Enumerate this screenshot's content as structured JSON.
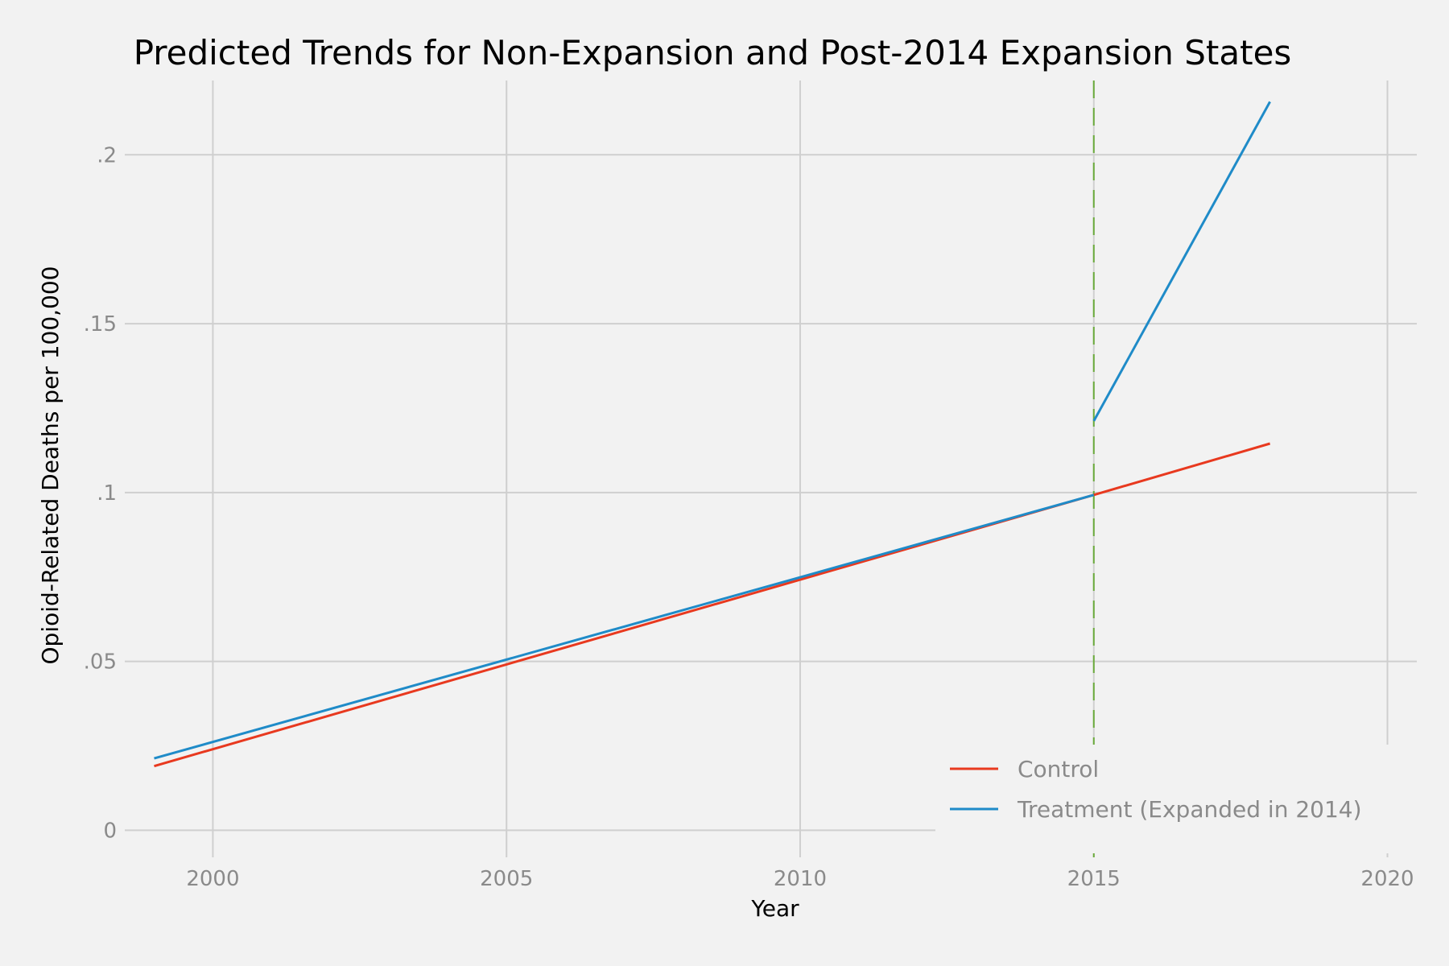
{
  "chart_data": {
    "type": "line",
    "title": "Predicted Trends for Non-Expansion and Post-2014 Expansion States",
    "xlabel": "Year",
    "ylabel": "Opioid-Related Deaths per 100,000",
    "xlim": [
      1998.5,
      2020.5
    ],
    "ylim": [
      -0.008,
      0.222
    ],
    "x_ticks": [
      2000,
      2005,
      2010,
      2015,
      2020
    ],
    "x_tick_labels": [
      "2000",
      "2005",
      "2010",
      "2015",
      "2020"
    ],
    "y_ticks": [
      0,
      0.05,
      0.1,
      0.15,
      0.2
    ],
    "y_tick_labels": [
      "0",
      ".05",
      ".1",
      ".15",
      ".2"
    ],
    "grid": true,
    "legend_position": "bottom-right",
    "vline": {
      "x": 2015,
      "style": "dashed",
      "color": "#6aaa3a"
    },
    "series": [
      {
        "name": "Control",
        "color": "#e8391f",
        "segments": [
          {
            "x": [
              1999,
              2015,
              2018
            ],
            "y": [
              0.019,
              0.0993,
              0.1145
            ]
          }
        ]
      },
      {
        "name": "Treatment (Expanded in 2014)",
        "color": "#1f8bc8",
        "segments": [
          {
            "x": [
              1999,
              2015
            ],
            "y": [
              0.0213,
              0.0993
            ]
          },
          {
            "x": [
              2015,
              2018
            ],
            "y": [
              0.1212,
              0.2157
            ]
          }
        ]
      }
    ]
  }
}
